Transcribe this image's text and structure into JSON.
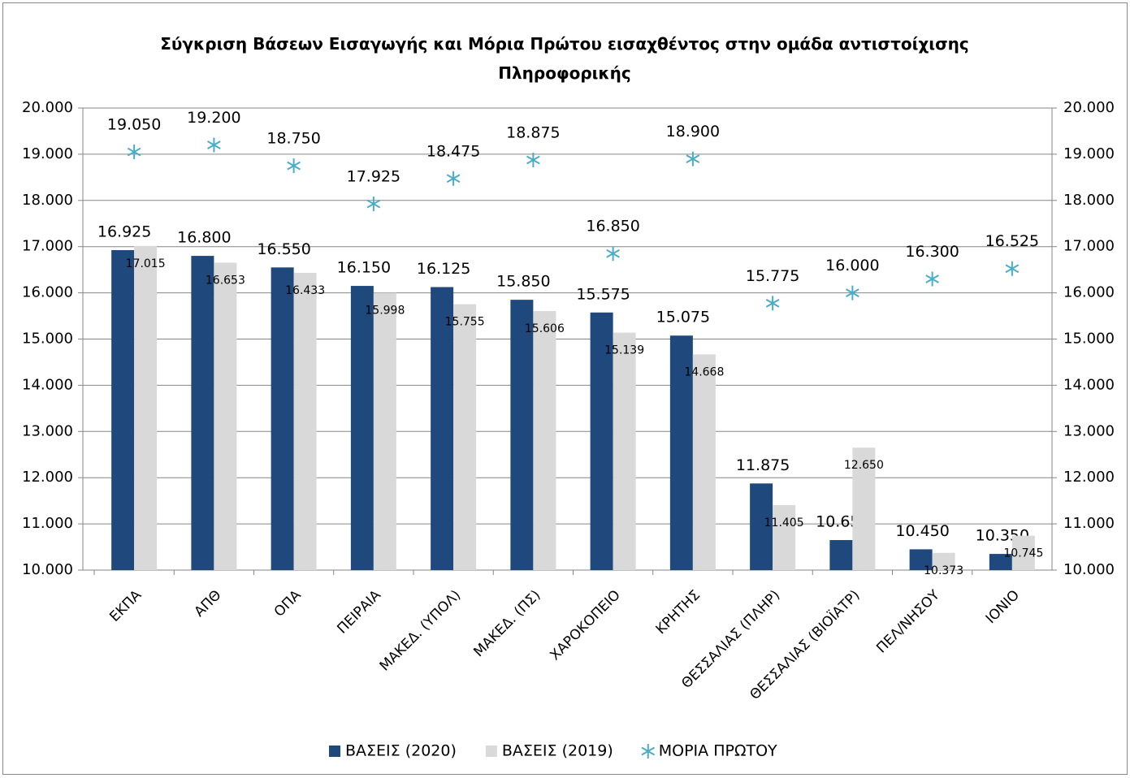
{
  "chart_data": {
    "type": "bar",
    "title": "Σύγκριση Βάσεων Εισαγωγής και Μόρια Πρώτου εισαχθέντος στην ομάδα αντιστοίχισης Πληροφορικής",
    "categories": [
      "ΕΚΠΑ",
      "ΑΠΘ",
      "ΟΠΑ",
      "ΠΕΙΡΑΙΑ",
      "ΜΑΚΕΔ. (ΥΠΟΛ)",
      "ΜΑΚΕΔ. (ΠΣ)",
      "ΧΑΡΟΚΟΠΕΙΟ",
      "ΚΡΗΤΗΣ",
      "ΘΕΣΣΑΛΙΑΣ (ΠΛΗΡ)",
      "ΘΕΣΣΑΛΙΑΣ (ΒΙΟΪΑΤΡ)",
      "ΠΕΛ/ΝΗΣΟΥ",
      "ΙΟΝΙΟ"
    ],
    "series": [
      {
        "name": "ΒΑΣΕΙΣ (2020)",
        "color": "#1f497d",
        "marker": "bar",
        "values": [
          16925,
          16800,
          16550,
          16150,
          16125,
          15850,
          15575,
          15075,
          11875,
          10650,
          10450,
          10350
        ],
        "value_labels": [
          "16.925",
          "16.800",
          "16.550",
          "16.150",
          "16.125",
          "15.850",
          "15.575",
          "15.075",
          "11.875",
          "10.650",
          "10.450",
          "10.350"
        ]
      },
      {
        "name": "ΒΑΣΕΙΣ (2019)",
        "color": "#d9d9d9",
        "marker": "bar",
        "values": [
          17015,
          16653,
          16433,
          15998,
          15755,
          15606,
          15139,
          14668,
          11405,
          12650,
          10373,
          10745
        ],
        "value_labels": [
          "17.015",
          "16.653",
          "16.433",
          "15.998",
          "15.755",
          "15.606",
          "15.139",
          "14.668",
          "11.405",
          "12.650",
          "10.373",
          "10.745"
        ]
      },
      {
        "name": "ΜΟΡΙΑ ΠΡΩΤΟΥ",
        "color": "#4bacc6",
        "marker": "star",
        "axis": "y2",
        "values": [
          19050,
          19200,
          18750,
          17925,
          18475,
          18875,
          16850,
          18900,
          15775,
          16000,
          16300,
          16525
        ],
        "value_labels": [
          "19.050",
          "19.200",
          "18.750",
          "17.925",
          "18.475",
          "18.875",
          "16.850",
          "18.900",
          "15.775",
          "16.000",
          "16.300",
          "16.525"
        ]
      }
    ],
    "ylim": [
      10000,
      20000
    ],
    "yticks": [
      {
        "value": 10000,
        "label": "10.000"
      },
      {
        "value": 11000,
        "label": "11.000"
      },
      {
        "value": 12000,
        "label": "12.000"
      },
      {
        "value": 13000,
        "label": "13.000"
      },
      {
        "value": 14000,
        "label": "14.000"
      },
      {
        "value": 15000,
        "label": "15.000"
      },
      {
        "value": 16000,
        "label": "16.000"
      },
      {
        "value": 17000,
        "label": "17.000"
      },
      {
        "value": 18000,
        "label": "18.000"
      },
      {
        "value": 19000,
        "label": "19.000"
      },
      {
        "value": 20000,
        "label": "20.000"
      }
    ],
    "y2lim": [
      10000,
      20000
    ],
    "y2ticks": [
      {
        "value": 10000,
        "label": "10.000"
      },
      {
        "value": 11000,
        "label": "11.000"
      },
      {
        "value": 12000,
        "label": "12.000"
      },
      {
        "value": 13000,
        "label": "13.000"
      },
      {
        "value": 14000,
        "label": "14.000"
      },
      {
        "value": 15000,
        "label": "15.000"
      },
      {
        "value": 16000,
        "label": "16.000"
      },
      {
        "value": 17000,
        "label": "17.000"
      },
      {
        "value": 18000,
        "label": "18.000"
      },
      {
        "value": 19000,
        "label": "19.000"
      },
      {
        "value": 20000,
        "label": "20.000"
      }
    ],
    "grid": true,
    "legend": "bottom"
  }
}
